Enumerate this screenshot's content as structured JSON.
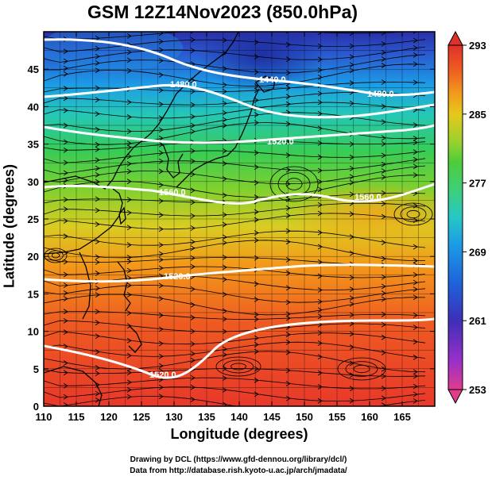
{
  "title": "GSM 12Z14Nov2023 (850.0hPa)",
  "axes": {
    "xlabel": "Longitude (degrees)",
    "ylabel": "Latitude  (degrees)",
    "xlim": [
      110,
      170
    ],
    "ylim": [
      0,
      50
    ],
    "xticks": [
      "110",
      "115",
      "120",
      "125",
      "130",
      "135",
      "140",
      "145",
      "150",
      "155",
      "160",
      "165"
    ],
    "yticks": [
      "0",
      "5",
      "10",
      "15",
      "20",
      "25",
      "30",
      "35",
      "40",
      "45"
    ]
  },
  "colorbar": {
    "min": 253,
    "max": 293,
    "tick_labels": [
      "293",
      "285",
      "277",
      "269",
      "261",
      "253"
    ],
    "colors": [
      "#e23c8c",
      "#9b30c8",
      "#3e2fb8",
      "#1f5ed8",
      "#1c9be6",
      "#26c7c4",
      "#3fcf7a",
      "#4dcc3a",
      "#9ad12e",
      "#e6c81d",
      "#f29a1c",
      "#ee5c22",
      "#e0302a"
    ]
  },
  "contour_labels": [
    "1480.0",
    "1440.0",
    "1480.0",
    "1520.0",
    "1560.0",
    "1560.0",
    "1520.0",
    "1520.0"
  ],
  "credits": {
    "line1": "Drawing by DCL (https://www.gfd-dennou.org/library/dcl/)",
    "line2": "Data from http://database.rish.kyoto-u.ac.jp/arch/jmadata/"
  }
}
